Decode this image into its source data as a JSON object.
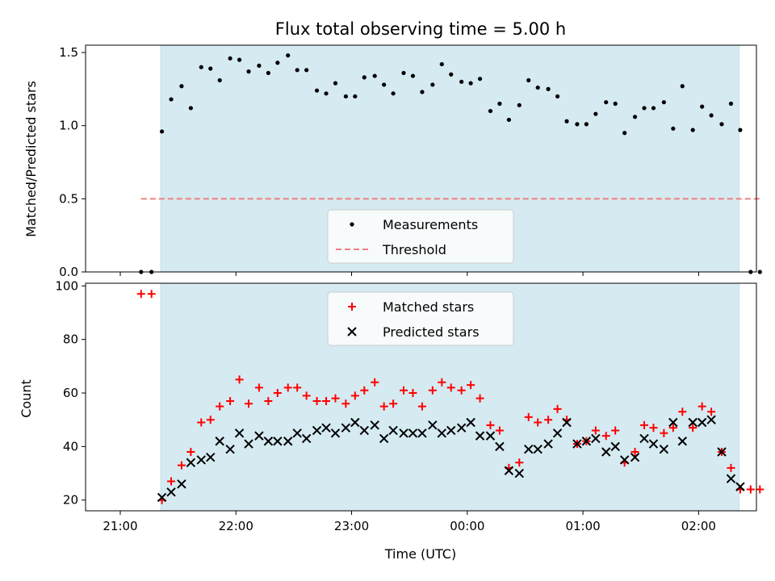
{
  "chart_data": {
    "title": "Flux total observing time = 5.00 h",
    "xlabel": "Time (UTC)",
    "x_ticks": [
      "21:00",
      "22:00",
      "23:00",
      "00:00",
      "01:00",
      "02:00"
    ],
    "x_range_hours": [
      20.7,
      26.5
    ],
    "observing_window_hours": [
      21.35,
      26.35
    ],
    "observing_window_color": "#d5eaf1",
    "panels": [
      {
        "type": "scatter",
        "ylabel": "Matched/Predicted stars",
        "ylim": [
          0,
          1.55
        ],
        "y_ticks": [
          0.0,
          0.5,
          1.0,
          1.5
        ],
        "legend_location": "lower-center",
        "series": [
          {
            "name": "Measurements",
            "marker": "dot",
            "color": "#000000",
            "points": [
              [
                21.18,
                0.0
              ],
              [
                21.27,
                0.0
              ],
              [
                21.36,
                0.96
              ],
              [
                21.44,
                1.18
              ],
              [
                21.53,
                1.27
              ],
              [
                21.61,
                1.12
              ],
              [
                21.7,
                1.4
              ],
              [
                21.78,
                1.39
              ],
              [
                21.86,
                1.31
              ],
              [
                21.95,
                1.46
              ],
              [
                22.03,
                1.45
              ],
              [
                22.11,
                1.37
              ],
              [
                22.2,
                1.41
              ],
              [
                22.28,
                1.36
              ],
              [
                22.36,
                1.43
              ],
              [
                22.45,
                1.48
              ],
              [
                22.53,
                1.38
              ],
              [
                22.61,
                1.38
              ],
              [
                22.7,
                1.24
              ],
              [
                22.78,
                1.22
              ],
              [
                22.86,
                1.29
              ],
              [
                22.95,
                1.2
              ],
              [
                23.03,
                1.2
              ],
              [
                23.11,
                1.33
              ],
              [
                23.2,
                1.34
              ],
              [
                23.28,
                1.28
              ],
              [
                23.36,
                1.22
              ],
              [
                23.45,
                1.36
              ],
              [
                23.53,
                1.34
              ],
              [
                23.61,
                1.23
              ],
              [
                23.7,
                1.28
              ],
              [
                23.78,
                1.42
              ],
              [
                23.86,
                1.35
              ],
              [
                23.95,
                1.3
              ],
              [
                24.03,
                1.29
              ],
              [
                24.11,
                1.32
              ],
              [
                24.2,
                1.1
              ],
              [
                24.28,
                1.15
              ],
              [
                24.36,
                1.04
              ],
              [
                24.45,
                1.14
              ],
              [
                24.53,
                1.31
              ],
              [
                24.61,
                1.26
              ],
              [
                24.7,
                1.25
              ],
              [
                24.78,
                1.2
              ],
              [
                24.86,
                1.03
              ],
              [
                24.95,
                1.01
              ],
              [
                25.03,
                1.01
              ],
              [
                25.11,
                1.08
              ],
              [
                25.2,
                1.16
              ],
              [
                25.28,
                1.15
              ],
              [
                25.36,
                0.95
              ],
              [
                25.45,
                1.06
              ],
              [
                25.53,
                1.12
              ],
              [
                25.61,
                1.12
              ],
              [
                25.7,
                1.16
              ],
              [
                25.78,
                0.98
              ],
              [
                25.86,
                1.27
              ],
              [
                25.95,
                0.97
              ],
              [
                26.03,
                1.13
              ],
              [
                26.11,
                1.07
              ],
              [
                26.2,
                1.01
              ],
              [
                26.28,
                1.15
              ],
              [
                26.36,
                0.97
              ],
              [
                26.45,
                0.0
              ],
              [
                26.53,
                0.0
              ]
            ]
          },
          {
            "name": "Threshold",
            "marker": "dashed-line",
            "color": "#f08080",
            "points": [
              [
                21.18,
                0.5
              ],
              [
                26.53,
                0.5
              ]
            ]
          }
        ]
      },
      {
        "type": "scatter",
        "ylabel": "Count",
        "ylim": [
          16,
          101
        ],
        "y_ticks": [
          20,
          40,
          60,
          80,
          100
        ],
        "legend_location": "upper-center",
        "series": [
          {
            "name": "Matched stars",
            "marker": "plus",
            "color": "#ff0000",
            "points": [
              [
                21.18,
                97
              ],
              [
                21.27,
                97
              ],
              [
                21.36,
                20
              ],
              [
                21.44,
                27
              ],
              [
                21.53,
                33
              ],
              [
                21.61,
                38
              ],
              [
                21.7,
                49
              ],
              [
                21.78,
                50
              ],
              [
                21.86,
                55
              ],
              [
                21.95,
                57
              ],
              [
                22.03,
                65
              ],
              [
                22.11,
                56
              ],
              [
                22.2,
                62
              ],
              [
                22.28,
                57
              ],
              [
                22.36,
                60
              ],
              [
                22.45,
                62
              ],
              [
                22.53,
                62
              ],
              [
                22.61,
                59
              ],
              [
                22.7,
                57
              ],
              [
                22.78,
                57
              ],
              [
                22.86,
                58
              ],
              [
                22.95,
                56
              ],
              [
                23.03,
                59
              ],
              [
                23.11,
                61
              ],
              [
                23.2,
                64
              ],
              [
                23.28,
                55
              ],
              [
                23.36,
                56
              ],
              [
                23.45,
                61
              ],
              [
                23.53,
                60
              ],
              [
                23.61,
                55
              ],
              [
                23.7,
                61
              ],
              [
                23.78,
                64
              ],
              [
                23.86,
                62
              ],
              [
                23.95,
                61
              ],
              [
                24.03,
                63
              ],
              [
                24.11,
                58
              ],
              [
                24.2,
                48
              ],
              [
                24.28,
                46
              ],
              [
                24.36,
                32
              ],
              [
                24.45,
                34
              ],
              [
                24.53,
                51
              ],
              [
                24.61,
                49
              ],
              [
                24.7,
                50
              ],
              [
                24.78,
                54
              ],
              [
                24.86,
                50
              ],
              [
                24.95,
                41
              ],
              [
                25.03,
                42
              ],
              [
                25.11,
                46
              ],
              [
                25.2,
                44
              ],
              [
                25.28,
                46
              ],
              [
                25.36,
                34
              ],
              [
                25.45,
                38
              ],
              [
                25.53,
                48
              ],
              [
                25.61,
                47
              ],
              [
                25.7,
                45
              ],
              [
                25.78,
                47
              ],
              [
                25.86,
                53
              ],
              [
                25.95,
                47
              ],
              [
                26.03,
                55
              ],
              [
                26.11,
                53
              ],
              [
                26.2,
                38
              ],
              [
                26.28,
                32
              ],
              [
                26.36,
                24
              ],
              [
                26.45,
                24
              ],
              [
                26.53,
                24
              ]
            ]
          },
          {
            "name": "Predicted stars",
            "marker": "x",
            "color": "#000000",
            "points": [
              [
                21.36,
                21
              ],
              [
                21.44,
                23
              ],
              [
                21.53,
                26
              ],
              [
                21.61,
                34
              ],
              [
                21.7,
                35
              ],
              [
                21.78,
                36
              ],
              [
                21.86,
                42
              ],
              [
                21.95,
                39
              ],
              [
                22.03,
                45
              ],
              [
                22.11,
                41
              ],
              [
                22.2,
                44
              ],
              [
                22.28,
                42
              ],
              [
                22.36,
                42
              ],
              [
                22.45,
                42
              ],
              [
                22.53,
                45
              ],
              [
                22.61,
                43
              ],
              [
                22.7,
                46
              ],
              [
                22.78,
                47
              ],
              [
                22.86,
                45
              ],
              [
                22.95,
                47
              ],
              [
                23.03,
                49
              ],
              [
                23.11,
                46
              ],
              [
                23.2,
                48
              ],
              [
                23.28,
                43
              ],
              [
                23.36,
                46
              ],
              [
                23.45,
                45
              ],
              [
                23.53,
                45
              ],
              [
                23.61,
                45
              ],
              [
                23.7,
                48
              ],
              [
                23.78,
                45
              ],
              [
                23.86,
                46
              ],
              [
                23.95,
                47
              ],
              [
                24.03,
                49
              ],
              [
                24.11,
                44
              ],
              [
                24.2,
                44
              ],
              [
                24.28,
                40
              ],
              [
                24.36,
                31
              ],
              [
                24.45,
                30
              ],
              [
                24.53,
                39
              ],
              [
                24.61,
                39
              ],
              [
                24.7,
                41
              ],
              [
                24.78,
                45
              ],
              [
                24.86,
                49
              ],
              [
                24.95,
                41
              ],
              [
                25.03,
                42
              ],
              [
                25.11,
                43
              ],
              [
                25.2,
                38
              ],
              [
                25.28,
                40
              ],
              [
                25.36,
                35
              ],
              [
                25.45,
                36
              ],
              [
                25.53,
                43
              ],
              [
                25.61,
                41
              ],
              [
                25.7,
                39
              ],
              [
                25.78,
                49
              ],
              [
                25.86,
                42
              ],
              [
                25.95,
                49
              ],
              [
                26.03,
                49
              ],
              [
                26.11,
                50
              ],
              [
                26.2,
                38
              ],
              [
                26.28,
                28
              ],
              [
                26.36,
                25
              ]
            ]
          }
        ]
      }
    ]
  }
}
